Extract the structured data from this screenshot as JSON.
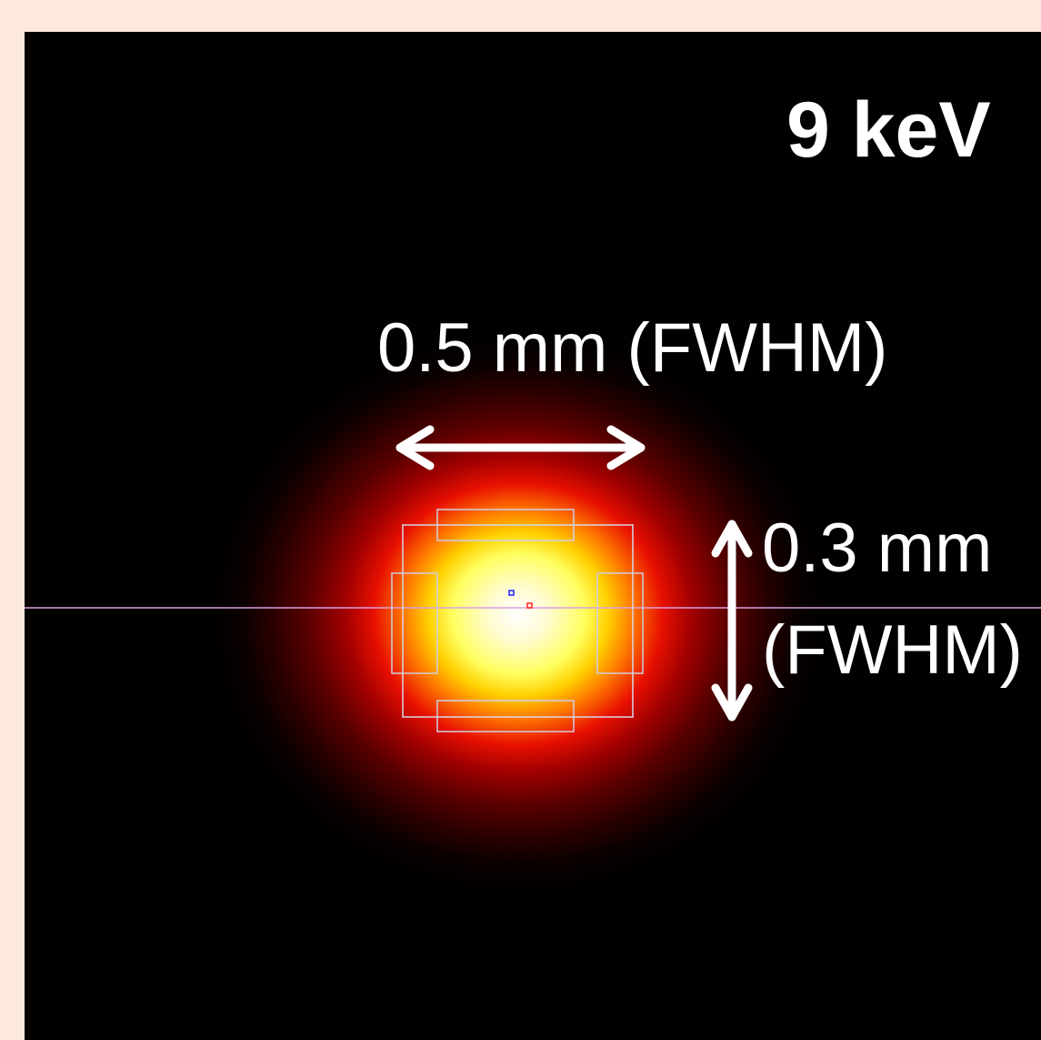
{
  "title": "9 keV",
  "horizontal_label": "0.5 mm (FWHM)",
  "vertical_label": {
    "line1": "0.3 mm",
    "line2": "(FWHM)"
  }
}
